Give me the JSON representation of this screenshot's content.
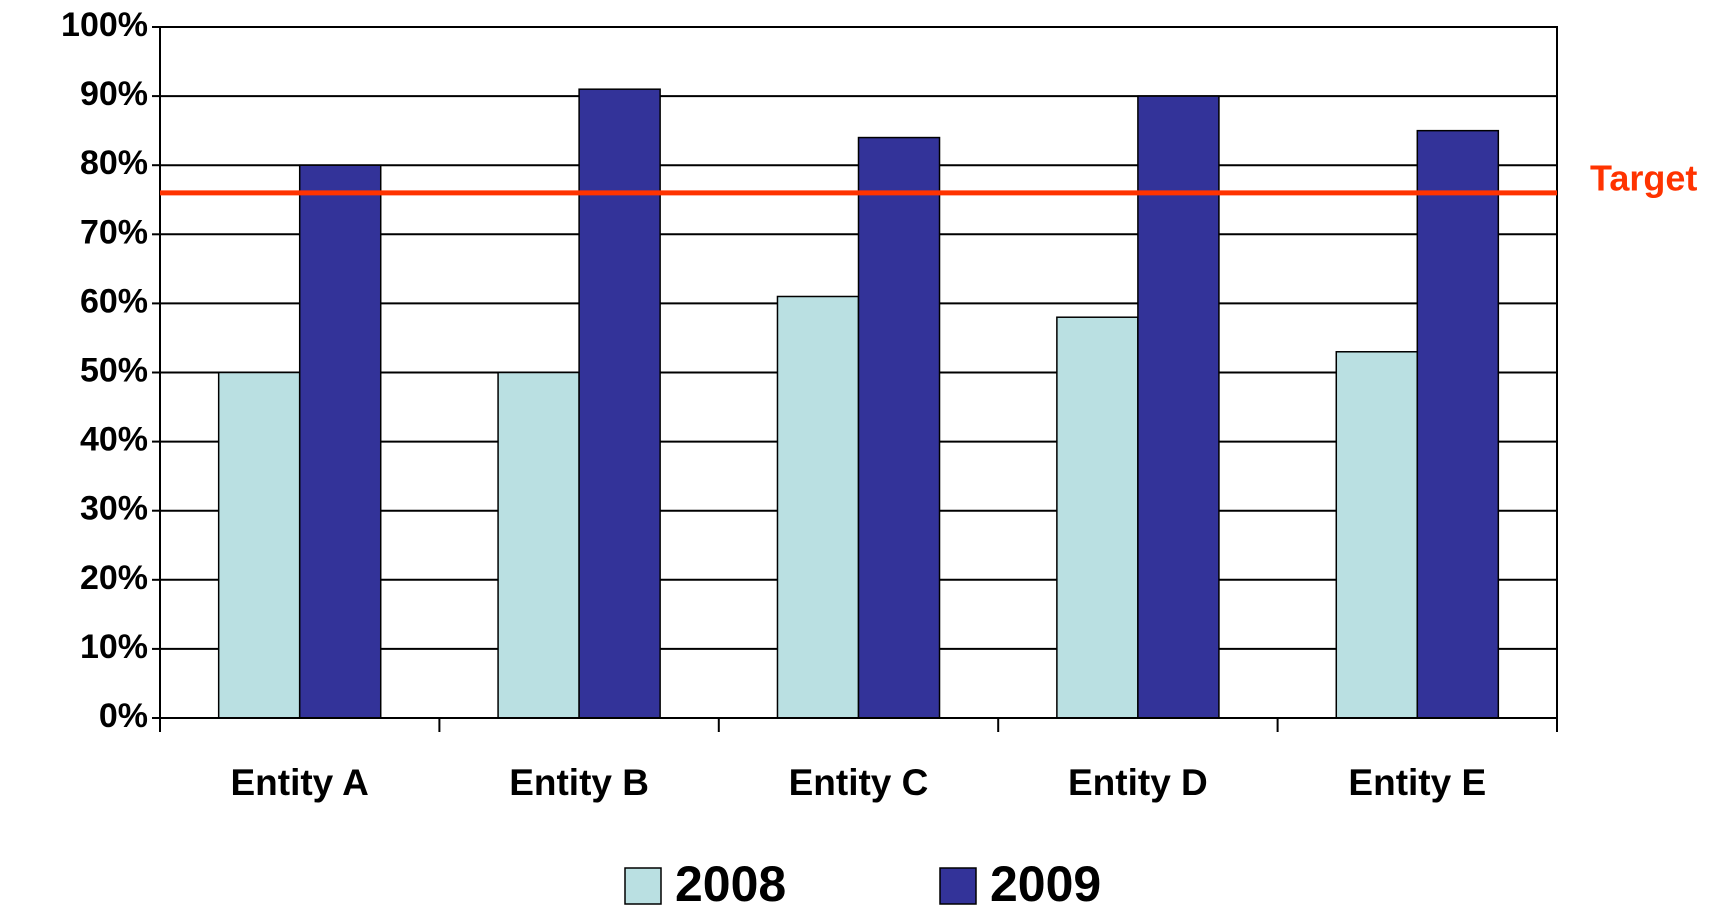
{
  "chart_data": {
    "type": "bar",
    "categories": [
      "Entity A",
      "Entity B",
      "Entity C",
      "Entity D",
      "Entity E"
    ],
    "series": [
      {
        "name": "2008",
        "color": "#bae0e2",
        "values": [
          50,
          50,
          61,
          58,
          53
        ]
      },
      {
        "name": "2009",
        "color": "#333399",
        "values": [
          80,
          91,
          84,
          90,
          85
        ]
      }
    ],
    "ylim": [
      0,
      100
    ],
    "yticks": [
      {
        "value": 0,
        "label": "0%"
      },
      {
        "value": 10,
        "label": "10%"
      },
      {
        "value": 20,
        "label": "20%"
      },
      {
        "value": 30,
        "label": "30%"
      },
      {
        "value": 40,
        "label": "40%"
      },
      {
        "value": 50,
        "label": "50%"
      },
      {
        "value": 60,
        "label": "60%"
      },
      {
        "value": 70,
        "label": "70%"
      },
      {
        "value": 80,
        "label": "80%"
      },
      {
        "value": 90,
        "label": "90%"
      },
      {
        "value": 100,
        "label": "100%"
      }
    ],
    "grid": true,
    "target": {
      "label": "Target",
      "value": 76,
      "color": "#ff3300"
    },
    "legend": "bottom"
  }
}
